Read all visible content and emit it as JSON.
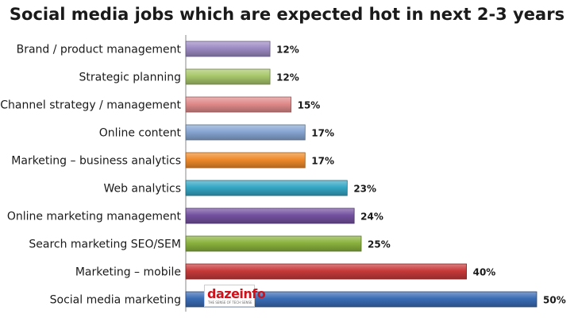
{
  "chart_data": {
    "type": "bar",
    "orientation": "horizontal",
    "title": "Social media jobs which are expected hot in next 2-3 years",
    "categories": [
      "Brand / product management",
      "Strategic planning",
      "Channel strategy / management",
      "Online content",
      "Marketing – business analytics",
      "Web analytics",
      "Online marketing management",
      "Search marketing SEO/SEM",
      "Marketing – mobile",
      "Social media marketing"
    ],
    "values": [
      12,
      12,
      15,
      17,
      17,
      23,
      24,
      25,
      40,
      50
    ],
    "value_labels": [
      "12%",
      "12%",
      "15%",
      "17%",
      "17%",
      "23%",
      "24%",
      "25%",
      "40%",
      "50%"
    ],
    "colors": [
      "#9c8ac2",
      "#a8c76a",
      "#e08a8a",
      "#87a6d3",
      "#ee8a2a",
      "#35a7c5",
      "#7451a0",
      "#8ab23d",
      "#c73a3a",
      "#3a6cb5"
    ],
    "xlim": [
      0,
      50
    ],
    "grid": false,
    "legend": false
  },
  "watermark": {
    "text": "dazeinfo",
    "tagline": "THE SENSE OF TECH SENSE"
  }
}
